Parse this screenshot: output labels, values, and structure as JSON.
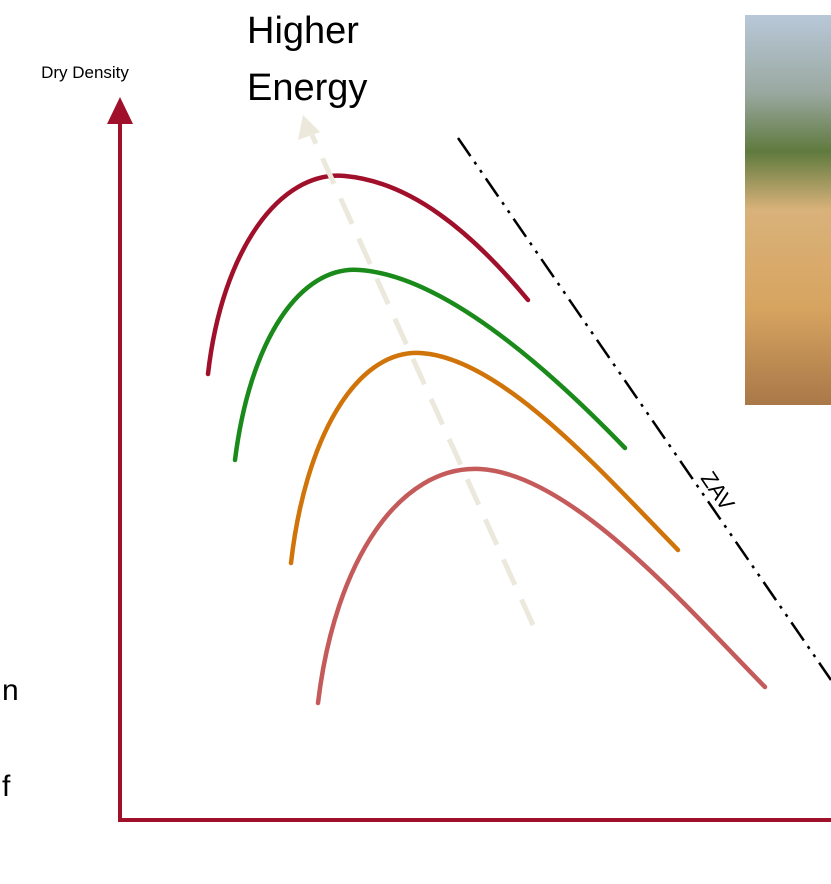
{
  "axis_label": "Dry Density",
  "energy_label": [
    "Higher",
    "Energy"
  ],
  "zav_label": "ZAV",
  "left_fragments": [
    "n",
    "f"
  ]
}
